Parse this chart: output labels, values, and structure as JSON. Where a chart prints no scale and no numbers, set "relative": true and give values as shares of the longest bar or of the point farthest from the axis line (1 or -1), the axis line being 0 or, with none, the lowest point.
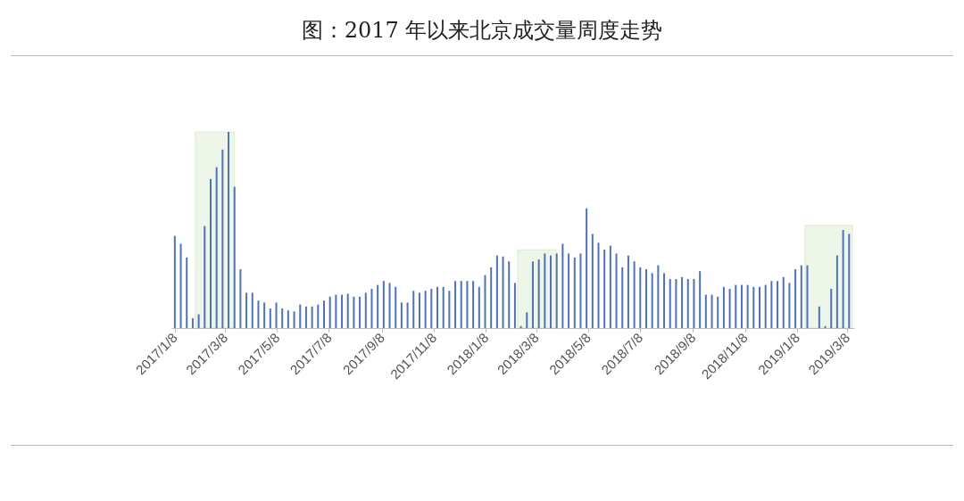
{
  "chart_data": {
    "type": "bar",
    "title": "图：2017 年以来北京成交量周度走势",
    "relative": true,
    "color": "#4f72b8",
    "x": [
      "2017-01-08",
      "2017-01-15",
      "2017-01-22",
      "2017-01-29",
      "2017-02-05",
      "2017-02-12",
      "2017-02-19",
      "2017-02-26",
      "2017-03-05",
      "2017-03-12",
      "2017-03-19",
      "2017-03-26",
      "2017-04-02",
      "2017-04-09",
      "2017-04-16",
      "2017-04-23",
      "2017-04-30",
      "2017-05-07",
      "2017-05-14",
      "2017-05-21",
      "2017-05-28",
      "2017-06-04",
      "2017-06-11",
      "2017-06-18",
      "2017-06-25",
      "2017-07-02",
      "2017-07-09",
      "2017-07-16",
      "2017-07-23",
      "2017-07-30",
      "2017-08-06",
      "2017-08-13",
      "2017-08-20",
      "2017-08-27",
      "2017-09-03",
      "2017-09-10",
      "2017-09-17",
      "2017-09-24",
      "2017-10-01",
      "2017-10-08",
      "2017-10-15",
      "2017-10-22",
      "2017-10-29",
      "2017-11-05",
      "2017-11-12",
      "2017-11-19",
      "2017-11-26",
      "2017-12-03",
      "2017-12-10",
      "2017-12-17",
      "2017-12-24",
      "2017-12-31",
      "2018-01-07",
      "2018-01-14",
      "2018-01-21",
      "2018-01-28",
      "2018-02-04",
      "2018-02-11",
      "2018-02-18",
      "2018-02-25",
      "2018-03-04",
      "2018-03-11",
      "2018-03-18",
      "2018-03-25",
      "2018-04-01",
      "2018-04-08",
      "2018-04-15",
      "2018-04-22",
      "2018-04-29",
      "2018-05-06",
      "2018-05-13",
      "2018-05-20",
      "2018-05-27",
      "2018-06-03",
      "2018-06-10",
      "2018-06-17",
      "2018-06-24",
      "2018-07-01",
      "2018-07-08",
      "2018-07-15",
      "2018-07-22",
      "2018-07-29",
      "2018-08-05",
      "2018-08-12",
      "2018-08-19",
      "2018-08-26",
      "2018-09-02",
      "2018-09-09",
      "2018-09-16",
      "2018-09-23",
      "2018-09-30",
      "2018-10-07",
      "2018-10-14",
      "2018-10-21",
      "2018-10-28",
      "2018-11-04",
      "2018-11-11",
      "2018-11-18",
      "2018-11-25",
      "2018-12-02",
      "2018-12-09",
      "2018-12-16",
      "2018-12-23",
      "2018-12-30",
      "2019-01-06",
      "2019-01-13",
      "2019-01-20",
      "2019-01-27",
      "2019-02-03",
      "2019-02-10",
      "2019-02-17",
      "2019-02-24",
      "2019-03-03",
      "2019-03-10"
    ],
    "values": [
      0.47,
      0.43,
      0.36,
      0.05,
      0.07,
      0.52,
      0.76,
      0.82,
      0.91,
      1.0,
      0.72,
      0.3,
      0.18,
      0.18,
      0.14,
      0.13,
      0.1,
      0.13,
      0.1,
      0.09,
      0.085,
      0.12,
      0.11,
      0.11,
      0.12,
      0.14,
      0.16,
      0.17,
      0.17,
      0.175,
      0.16,
      0.16,
      0.18,
      0.2,
      0.22,
      0.24,
      0.23,
      0.21,
      0.13,
      0.13,
      0.19,
      0.18,
      0.19,
      0.2,
      0.21,
      0.21,
      0.19,
      0.24,
      0.24,
      0.24,
      0.24,
      0.21,
      0.27,
      0.31,
      0.37,
      0.365,
      0.34,
      0.23,
      0.01,
      0.08,
      0.34,
      0.35,
      0.38,
      0.37,
      0.38,
      0.43,
      0.38,
      0.36,
      0.38,
      0.61,
      0.48,
      0.435,
      0.4,
      0.42,
      0.38,
      0.31,
      0.37,
      0.34,
      0.31,
      0.3,
      0.28,
      0.32,
      0.28,
      0.25,
      0.25,
      0.26,
      0.25,
      0.25,
      0.29,
      0.17,
      0.17,
      0.16,
      0.21,
      0.2,
      0.22,
      0.22,
      0.22,
      0.21,
      0.21,
      0.22,
      0.24,
      0.24,
      0.26,
      0.23,
      0.3,
      0.32,
      0.32,
      0,
      0.11,
      0.01,
      0.2,
      0.37,
      0.5,
      0.48
    ],
    "xlim": [
      "2017-01-05",
      "2019-03-16"
    ],
    "xticks": [
      {
        "value": "2017-01-08",
        "label": "2017/1/8"
      },
      {
        "value": "2017-03-08",
        "label": "2017/3/8"
      },
      {
        "value": "2017-05-08",
        "label": "2017/5/8"
      },
      {
        "value": "2017-07-08",
        "label": "2017/7/8"
      },
      {
        "value": "2017-09-08",
        "label": "2017/9/8"
      },
      {
        "value": "2017-11-08",
        "label": "2017/11/8"
      },
      {
        "value": "2018-01-08",
        "label": "2018/1/8"
      },
      {
        "value": "2018-03-08",
        "label": "2018/3/8"
      },
      {
        "value": "2018-05-08",
        "label": "2018/5/8"
      },
      {
        "value": "2018-07-08",
        "label": "2018/7/8"
      },
      {
        "value": "2018-09-08",
        "label": "2018/9/8"
      },
      {
        "value": "2018-11-08",
        "label": "2018/11/8"
      },
      {
        "value": "2019-01-08",
        "label": "2019/1/8"
      },
      {
        "value": "2019-03-08",
        "label": "2019/3/8"
      }
    ],
    "bands": [
      {
        "axis": "x",
        "from": "2017-02-01",
        "to": "2017-03-19",
        "color": "#70ad47"
      },
      {
        "axis": "x",
        "from": "2018-02-14",
        "to": "2018-04-01",
        "color": "#70ad47"
      },
      {
        "axis": "x",
        "from": "2019-01-17",
        "to": "2019-03-14",
        "color": "#70ad47"
      }
    ],
    "grid": false
  }
}
